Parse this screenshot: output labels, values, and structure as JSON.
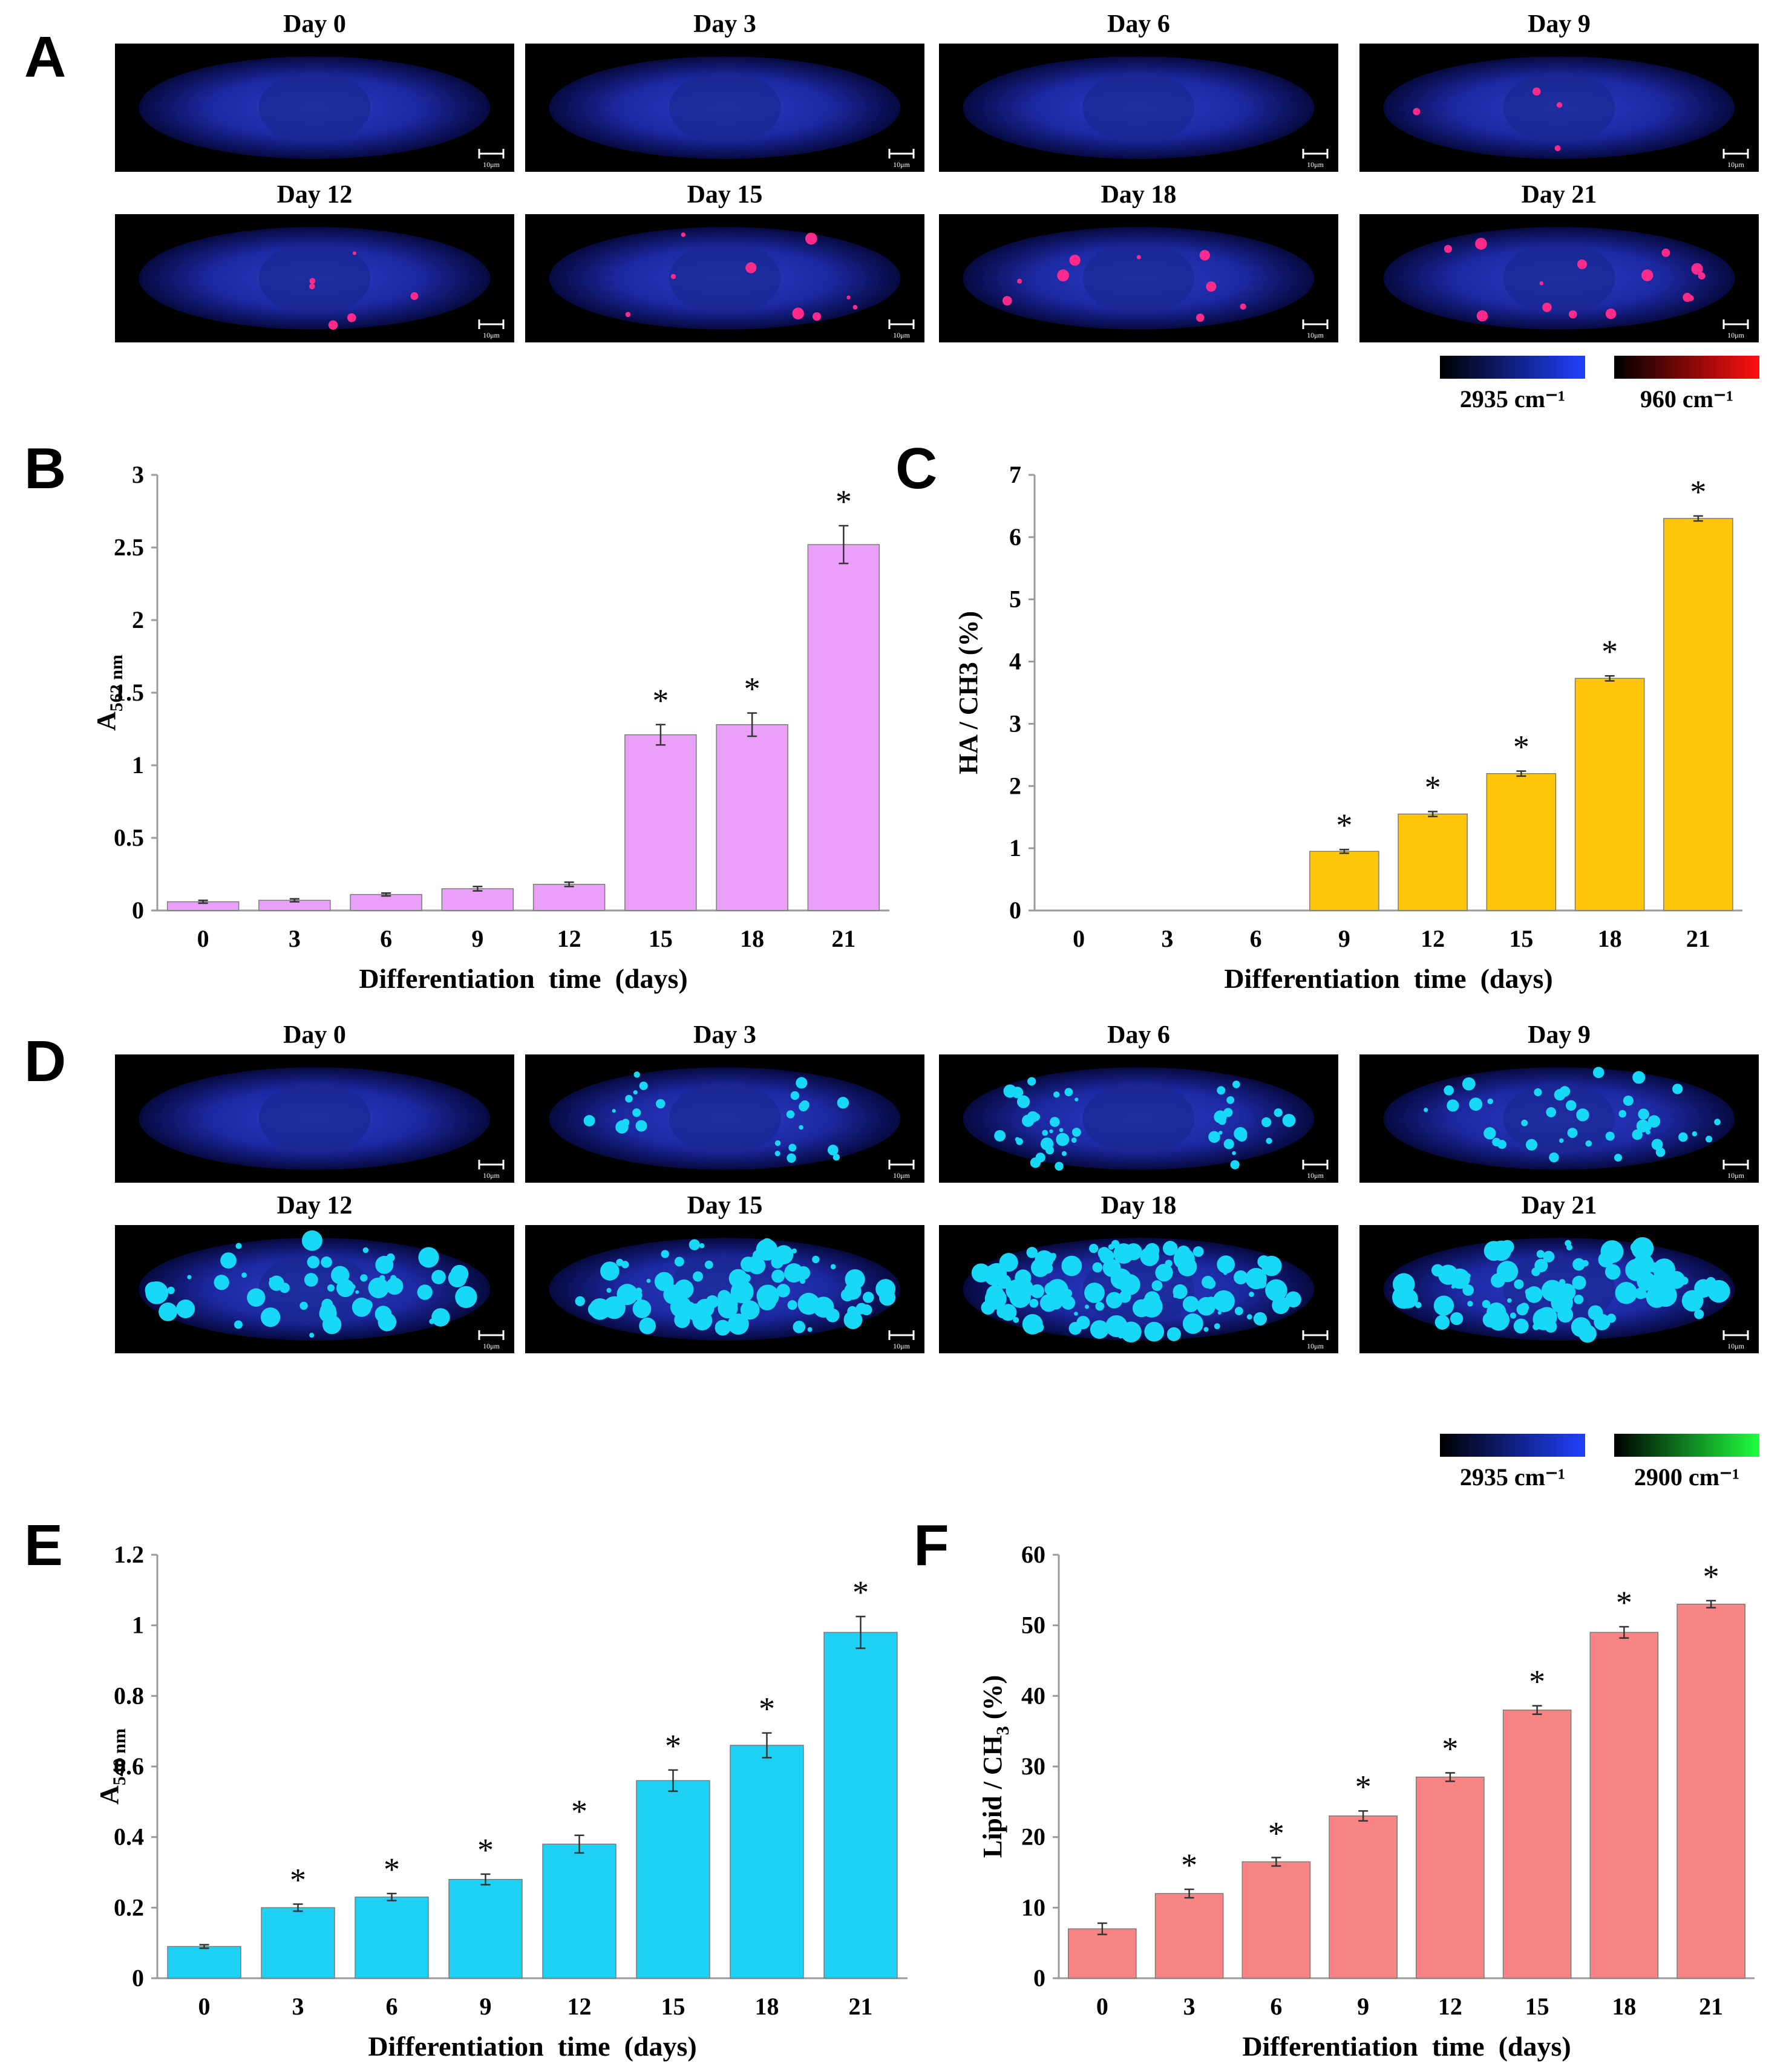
{
  "panels": {
    "A": {
      "letter": "A",
      "rows": [
        [
          "Day 0",
          "Day 3",
          "Day 6",
          "Day 9"
        ],
        [
          "Day 12",
          "Day 15",
          "Day 18",
          "Day 21"
        ]
      ],
      "scale_label": "10μm",
      "colorbars": [
        {
          "label": "2935 cm⁻¹",
          "end_color": "#2040ff"
        },
        {
          "label": "960 cm⁻¹",
          "end_color": "#ff1010"
        }
      ]
    },
    "D": {
      "letter": "D",
      "rows": [
        [
          "Day 0",
          "Day 3",
          "Day 6",
          "Day 9"
        ],
        [
          "Day 12",
          "Day 15",
          "Day 18",
          "Day 21"
        ]
      ],
      "scale_label": "10μm",
      "colorbars": [
        {
          "label": "2935 cm⁻¹",
          "end_color": "#2040ff"
        },
        {
          "label": "2900 cm⁻¹",
          "end_color": "#20ff40"
        }
      ]
    },
    "B": {
      "letter": "B"
    },
    "C": {
      "letter": "C"
    },
    "E": {
      "letter": "E"
    },
    "F": {
      "letter": "F"
    }
  },
  "chart_data": [
    {
      "id": "B",
      "type": "bar",
      "categories": [
        "0",
        "3",
        "6",
        "9",
        "12",
        "15",
        "18",
        "21"
      ],
      "values": [
        0.06,
        0.07,
        0.11,
        0.15,
        0.18,
        1.21,
        1.28,
        2.52
      ],
      "errors": [
        0.01,
        0.01,
        0.01,
        0.015,
        0.015,
        0.07,
        0.08,
        0.13
      ],
      "significant": [
        false,
        false,
        false,
        false,
        false,
        true,
        true,
        true
      ],
      "ylabel": "A",
      "ylabel_sub": "562 nm",
      "xlabel": "Differentiation  time  (days)",
      "ylim": [
        0,
        3
      ],
      "yticks": [
        "0",
        "0.5",
        "1",
        "1.5",
        "2",
        "2.5",
        "3"
      ],
      "bar_color": "#eaa0f8"
    },
    {
      "id": "C",
      "type": "bar",
      "categories": [
        "0",
        "3",
        "6",
        "9",
        "12",
        "15",
        "18",
        "21"
      ],
      "values": [
        0,
        0,
        0,
        0.95,
        1.55,
        2.2,
        3.73,
        6.3
      ],
      "errors": [
        0,
        0,
        0,
        0.03,
        0.04,
        0.04,
        0.04,
        0.04
      ],
      "significant": [
        false,
        false,
        false,
        true,
        true,
        true,
        true,
        true
      ],
      "ylabel": "HA / CH3 (%)",
      "xlabel": "Differentiation  time  (days)",
      "ylim": [
        0,
        7
      ],
      "yticks": [
        "0",
        "1",
        "2",
        "3",
        "4",
        "5",
        "6",
        "7"
      ],
      "bar_color": "#ffc60a"
    },
    {
      "id": "E",
      "type": "bar",
      "categories": [
        "0",
        "3",
        "6",
        "9",
        "12",
        "15",
        "18",
        "21"
      ],
      "values": [
        0.09,
        0.2,
        0.23,
        0.28,
        0.38,
        0.56,
        0.66,
        0.98
      ],
      "errors": [
        0.005,
        0.01,
        0.01,
        0.015,
        0.025,
        0.03,
        0.035,
        0.045
      ],
      "significant": [
        false,
        true,
        true,
        true,
        true,
        true,
        true,
        true
      ],
      "ylabel": "A",
      "ylabel_sub": "540 nm",
      "xlabel": "Differentiation  time  (days)",
      "ylim": [
        0,
        1.2
      ],
      "yticks": [
        "0",
        "0.2",
        "0.4",
        "0.6",
        "0.8",
        "1",
        "1.2"
      ],
      "bar_color": "#1ed0f4"
    },
    {
      "id": "F",
      "type": "bar",
      "categories": [
        "0",
        "3",
        "6",
        "9",
        "12",
        "15",
        "18",
        "21"
      ],
      "values": [
        7,
        12,
        16.5,
        23,
        28.5,
        38,
        49,
        53
      ],
      "errors": [
        0.8,
        0.6,
        0.6,
        0.7,
        0.6,
        0.6,
        0.8,
        0.5
      ],
      "significant": [
        false,
        true,
        true,
        true,
        true,
        true,
        true,
        true
      ],
      "ylabel": "Lipid / CH",
      "ylabel_sub": "3",
      "ylabel_suffix": " (%)",
      "xlabel": "Differentiation  time  (days)",
      "ylim": [
        0,
        60
      ],
      "yticks": [
        "0",
        "10",
        "20",
        "30",
        "40",
        "50",
        "60"
      ],
      "bar_color": "#f98484"
    }
  ]
}
